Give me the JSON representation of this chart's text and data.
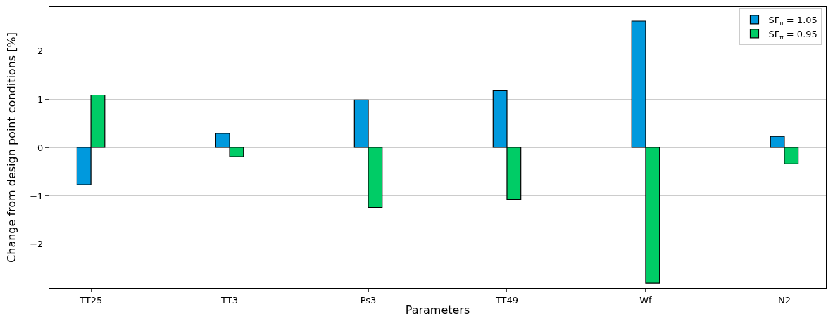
{
  "chart_data": {
    "type": "bar",
    "xlabel": "Parameters",
    "ylabel": "Change from design point conditions [%]",
    "categories": [
      "TT25",
      "TT3",
      "Ps3",
      "TT49",
      "Wf",
      "N2"
    ],
    "series": [
      {
        "name": "SF$_{π}$ = 1.05",
        "color": "#0099dd",
        "values": [
          -0.77,
          0.29,
          0.98,
          1.18,
          2.61,
          0.23
        ]
      },
      {
        "name": "SF$_{π}$ = 0.95",
        "color": "#00cc66",
        "values": [
          1.08,
          -0.19,
          -1.24,
          -1.08,
          -2.8,
          -0.34
        ]
      }
    ],
    "ylim": [
      -2.9,
      2.9
    ],
    "yticks": [
      {
        "value": -2,
        "label": "−2"
      },
      {
        "value": -1,
        "label": "−1"
      },
      0,
      1,
      2
    ],
    "grid": "y",
    "legend": "top right"
  }
}
